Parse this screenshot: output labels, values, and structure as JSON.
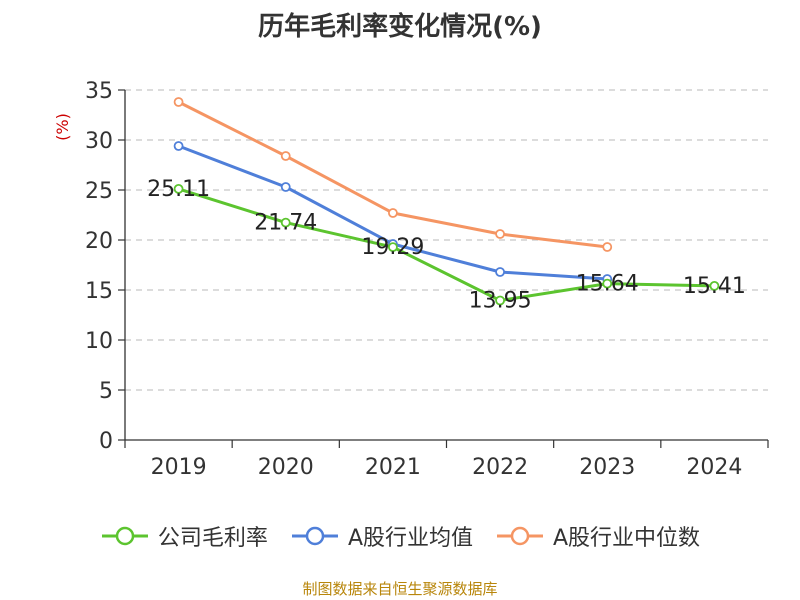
{
  "chart_data": {
    "type": "line",
    "title": "历年毛利率变化情况(%)",
    "ylabel": "(%)",
    "xlabel": "",
    "categories": [
      "2019",
      "2020",
      "2021",
      "2022",
      "2023",
      "2024"
    ],
    "ylim": [
      0,
      35
    ],
    "yticks": [
      "0",
      "5",
      "10",
      "15",
      "20",
      "25",
      "30",
      "35"
    ],
    "grid": true,
    "legend_position": "bottom",
    "series": [
      {
        "name": "公司毛利率",
        "color": "#5cc42f",
        "values": [
          25.11,
          21.74,
          19.29,
          13.95,
          15.64,
          15.41
        ],
        "labels": [
          "25.11",
          "21.74",
          "19.29",
          "13.95",
          "15.64",
          "15.41"
        ]
      },
      {
        "name": "A股行业均值",
        "color": "#4f7fd9",
        "values": [
          29.4,
          25.3,
          19.6,
          16.8,
          16.1,
          null
        ]
      },
      {
        "name": "A股行业中位数",
        "color": "#f59563",
        "values": [
          33.8,
          28.4,
          22.7,
          20.6,
          19.3,
          null
        ]
      }
    ]
  },
  "source_note": "制图数据来自恒生聚源数据库"
}
